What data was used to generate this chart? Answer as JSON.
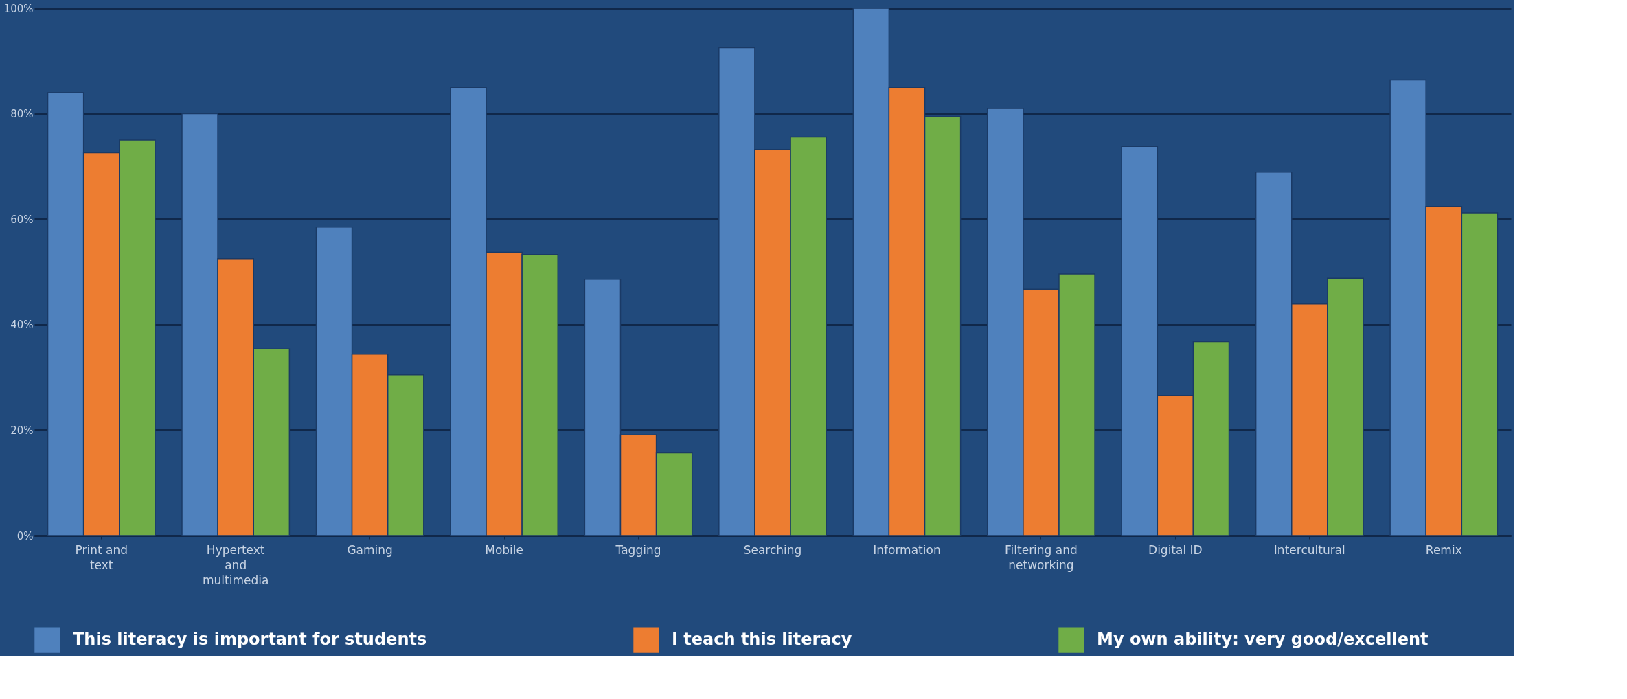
{
  "chart_data": {
    "type": "bar",
    "categories": [
      "Print and\ntext",
      "Hypertext\nand\nmultimedia",
      "Gaming",
      "Mobile",
      "Tagging",
      "Searching",
      "Information",
      "Filtering and\nnetworking",
      "Digital ID",
      "Intercultural",
      "Remix"
    ],
    "series": [
      {
        "name": "This literacy is important for students",
        "color": "#4f81bd",
        "values": [
          84,
          80,
          58.5,
          85,
          48.6,
          92.5,
          100,
          81,
          73.8,
          68.9,
          86.4
        ]
      },
      {
        "name": "I teach this literacy",
        "color": "#ed7d31",
        "values": [
          72.6,
          52.5,
          34.4,
          53.7,
          19.1,
          73.2,
          85,
          46.7,
          26.6,
          43.9,
          62.4
        ]
      },
      {
        "name": "My own ability: very good/excellent",
        "color": "#70ad47",
        "values": [
          75,
          35.4,
          30.5,
          53.3,
          15.7,
          75.6,
          79.5,
          49.6,
          36.8,
          48.8,
          61.2
        ]
      }
    ],
    "ylim": [
      0,
      100
    ],
    "yticks": [
      {
        "value": 0,
        "label": "0%"
      },
      {
        "value": 20,
        "label": "20%"
      },
      {
        "value": 40,
        "label": "40%"
      },
      {
        "value": 60,
        "label": "60%"
      },
      {
        "value": 80,
        "label": "80%"
      },
      {
        "value": 100,
        "label": "100%"
      }
    ],
    "grid": "y",
    "legend": "bottom"
  }
}
